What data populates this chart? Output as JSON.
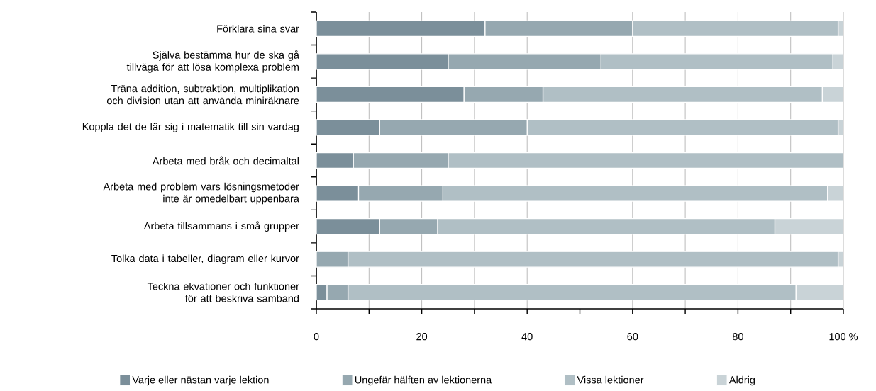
{
  "chart_data": {
    "type": "bar",
    "orientation": "horizontal",
    "stacked": true,
    "categories": [
      "Förklara sina svar",
      "Själva bestämma hur de ska gå tillväga för att lösa komplexa problem",
      "Träna addition, subtraktion, multiplikation och division utan att använda miniräknare",
      "Koppla det de lär sig i matematik till sin vardag",
      "Arbeta med bråk och decimaltal",
      "Arbeta med problem vars lösningsmetoder inte är omedelbart uppenbara",
      "Arbeta tillsammans i små grupper",
      "Tolka data i tabeller, diagram eller kurvor",
      "Teckna ekvationer och funktioner för att beskriva samband"
    ],
    "series": [
      {
        "name": "Varje eller nästan varje lektion",
        "color": "#7b8f9a",
        "values": [
          32,
          25,
          28,
          12,
          7,
          8,
          12,
          0,
          2
        ]
      },
      {
        "name": "Ungefär hälften av lektionerna",
        "color": "#96a8b0",
        "values": [
          28,
          29,
          15,
          28,
          18,
          16,
          11,
          6,
          4
        ]
      },
      {
        "name": "Vissa lektioner",
        "color": "#b0bfc5",
        "values": [
          39,
          44,
          53,
          59,
          75,
          73,
          64,
          93,
          85
        ]
      },
      {
        "name": "Aldrig",
        "color": "#c9d3d7",
        "values": [
          1,
          2,
          4,
          1,
          0,
          3,
          13,
          1,
          9
        ]
      }
    ],
    "xlim": [
      0,
      100
    ],
    "xticks": [
      0,
      {
        "value": 10,
        "label": null
      },
      20,
      {
        "value": 30,
        "label": null
      },
      40,
      {
        "value": 50,
        "label": null
      },
      60,
      {
        "value": 70,
        "label": null
      },
      80,
      {
        "value": 90,
        "label": null
      },
      {
        "value": 100,
        "label": "100 %"
      }
    ],
    "grid": "x",
    "legend": "bottom"
  }
}
